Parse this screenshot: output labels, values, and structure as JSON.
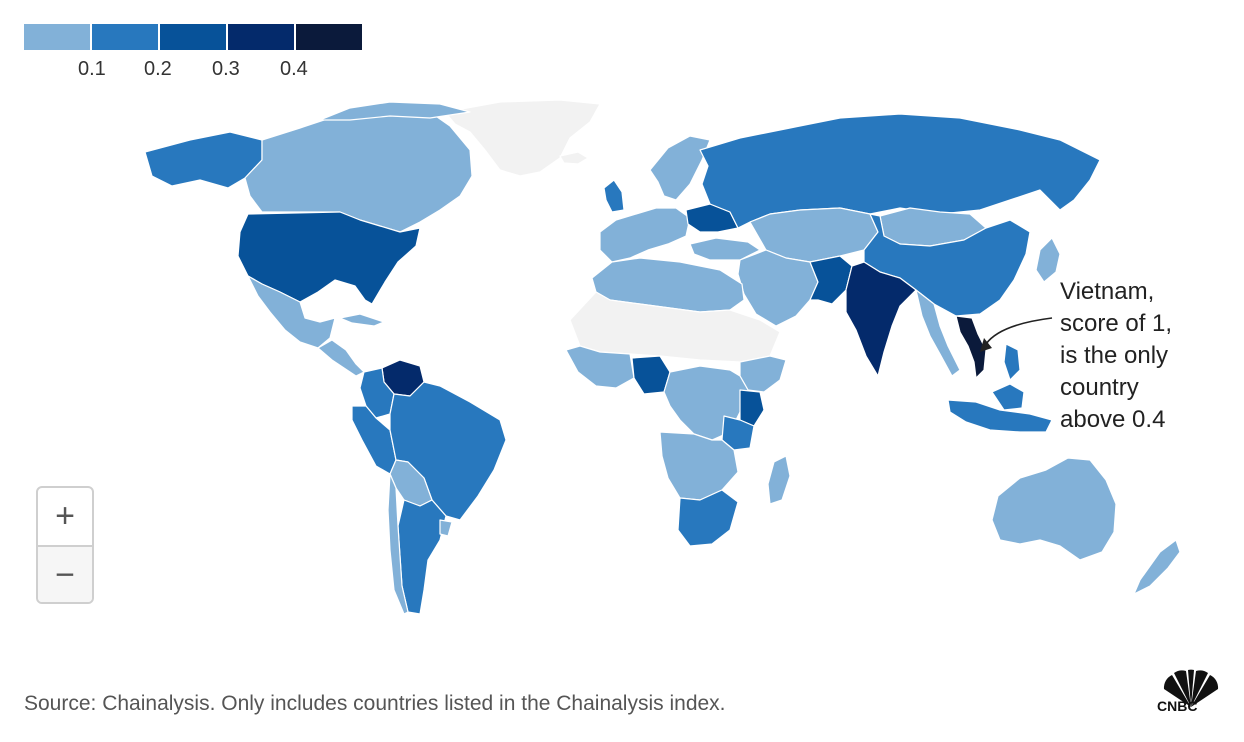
{
  "legend": {
    "colors": [
      "#82b1d8",
      "#2878be",
      "#075299",
      "#042a6b",
      "#0b1a3b"
    ],
    "ticks": [
      "0.1",
      "0.2",
      "0.3",
      "0.4"
    ]
  },
  "colors": {
    "no_data": "#f2f2f2",
    "border": "#ffffff",
    "ocean": "#ffffff"
  },
  "annotation": {
    "lines": [
      "Vietnam,",
      "score of 1,",
      "is the only",
      "country",
      "above 0.4"
    ]
  },
  "zoom": {
    "in_label": "+",
    "out_label": "−"
  },
  "source": "Source: Chainalysis. Only includes countries listed in the Chainalysis index.",
  "logo": {
    "brand": "CNBC",
    "colors": [
      "#111111"
    ]
  }
}
